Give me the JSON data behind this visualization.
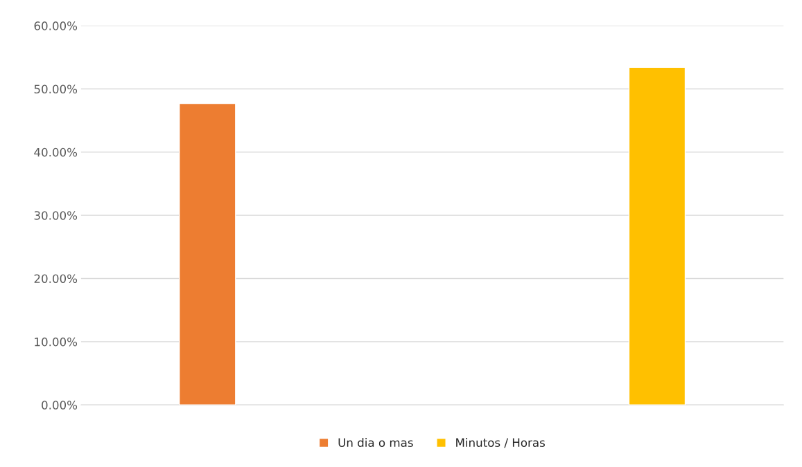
{
  "chart_data": {
    "type": "bar",
    "categories": [
      null
    ],
    "series": [
      {
        "name": "Un dia o mas",
        "color": "#ed7d31",
        "values": [
          47.7
        ]
      },
      {
        "name": "Minutos / Horas",
        "color": "#ffc000",
        "values": [
          53.4
        ]
      }
    ],
    "ylim": [
      0,
      60
    ],
    "yticks": [
      {
        "value": 0,
        "label": "0.00%"
      },
      {
        "value": 10,
        "label": "10.00%"
      },
      {
        "value": 20,
        "label": "20.00%"
      },
      {
        "value": 30,
        "label": "30.00%"
      },
      {
        "value": 40,
        "label": "40.00%"
      },
      {
        "value": 50,
        "label": "50.00%"
      },
      {
        "value": 60,
        "label": "60.00%"
      }
    ],
    "grid": "y",
    "legend": "bottom"
  }
}
